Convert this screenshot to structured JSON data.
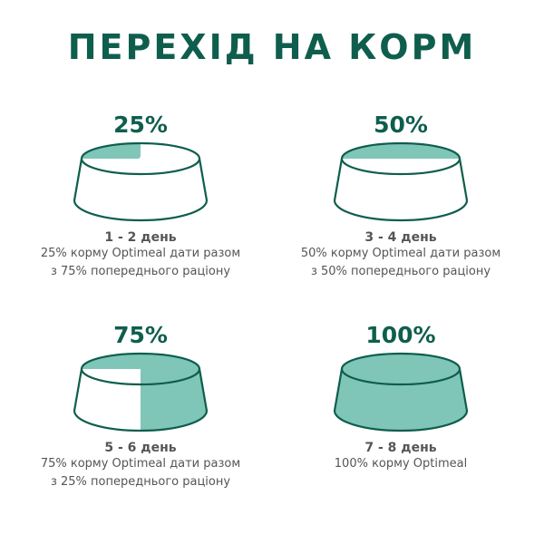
{
  "title": "ПЕРЕХІД НА КОРМ",
  "colors": {
    "outline": "#0f5e4d",
    "fill": "#7fc6b8",
    "text": "#555555"
  },
  "steps": [
    {
      "percent": "25%",
      "level": 25,
      "days": "1 - 2 день",
      "line1": "25% корму Optimeal дати разом",
      "line2": "з 75% попереднього раціону"
    },
    {
      "percent": "50%",
      "level": 50,
      "days": "3 - 4 день",
      "line1": "50% корму Optimeal дати разом",
      "line2": "з 50% попереднього раціону"
    },
    {
      "percent": "75%",
      "level": 75,
      "days": "5 - 6 день",
      "line1": "75% корму Optimeal дати разом",
      "line2": "з 25% попереднього раціону"
    },
    {
      "percent": "100%",
      "level": 100,
      "days": "7 - 8 день",
      "line1": "100% корму Optimeal",
      "line2": ""
    }
  ]
}
